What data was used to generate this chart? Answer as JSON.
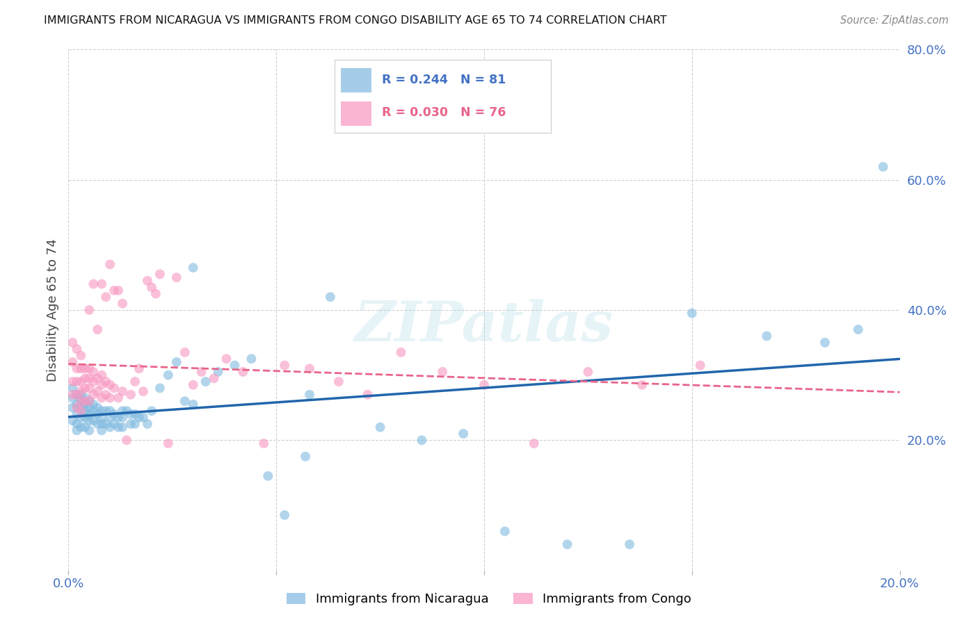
{
  "title": "IMMIGRANTS FROM NICARAGUA VS IMMIGRANTS FROM CONGO DISABILITY AGE 65 TO 74 CORRELATION CHART",
  "source": "Source: ZipAtlas.com",
  "ylabel": "Disability Age 65 to 74",
  "xlim": [
    0.0,
    0.2
  ],
  "ylim": [
    0.0,
    0.8
  ],
  "xticks": [
    0.0,
    0.05,
    0.1,
    0.15,
    0.2
  ],
  "yticks": [
    0.0,
    0.2,
    0.4,
    0.6,
    0.8
  ],
  "nicaragua_color": "#7fb9e0",
  "congo_color": "#f896c0",
  "nicaragua_line_color": "#2166ac",
  "congo_line_color": "#e8648a",
  "tick_color": "#4472c4",
  "legend_nicaragua_label": "Immigrants from Nicaragua",
  "legend_congo_label": "Immigrants from Congo",
  "R_nicaragua": 0.244,
  "N_nicaragua": 81,
  "R_congo": 0.03,
  "N_congo": 76,
  "watermark": "ZIPatlas",
  "nicaragua_x": [
    0.001,
    0.001,
    0.001,
    0.001,
    0.002,
    0.002,
    0.002,
    0.002,
    0.002,
    0.003,
    0.003,
    0.003,
    0.003,
    0.003,
    0.004,
    0.004,
    0.004,
    0.004,
    0.004,
    0.005,
    0.005,
    0.005,
    0.005,
    0.005,
    0.006,
    0.006,
    0.006,
    0.007,
    0.007,
    0.007,
    0.008,
    0.008,
    0.008,
    0.008,
    0.009,
    0.009,
    0.01,
    0.01,
    0.01,
    0.011,
    0.011,
    0.012,
    0.012,
    0.013,
    0.013,
    0.013,
    0.014,
    0.015,
    0.015,
    0.016,
    0.016,
    0.017,
    0.018,
    0.019,
    0.02,
    0.022,
    0.024,
    0.026,
    0.028,
    0.03,
    0.033,
    0.036,
    0.04,
    0.044,
    0.048,
    0.052,
    0.057,
    0.063,
    0.03,
    0.058,
    0.075,
    0.085,
    0.095,
    0.105,
    0.12,
    0.135,
    0.15,
    0.168,
    0.182,
    0.19,
    0.196
  ],
  "nicaragua_y": [
    0.28,
    0.265,
    0.25,
    0.23,
    0.27,
    0.255,
    0.24,
    0.225,
    0.215,
    0.27,
    0.26,
    0.25,
    0.235,
    0.22,
    0.265,
    0.255,
    0.245,
    0.235,
    0.22,
    0.26,
    0.25,
    0.24,
    0.23,
    0.215,
    0.255,
    0.245,
    0.23,
    0.25,
    0.24,
    0.225,
    0.245,
    0.235,
    0.225,
    0.215,
    0.245,
    0.225,
    0.245,
    0.235,
    0.22,
    0.24,
    0.225,
    0.235,
    0.22,
    0.245,
    0.235,
    0.22,
    0.245,
    0.24,
    0.225,
    0.24,
    0.225,
    0.235,
    0.235,
    0.225,
    0.245,
    0.28,
    0.3,
    0.32,
    0.26,
    0.255,
    0.29,
    0.305,
    0.315,
    0.325,
    0.145,
    0.085,
    0.175,
    0.42,
    0.465,
    0.27,
    0.22,
    0.2,
    0.21,
    0.06,
    0.04,
    0.04,
    0.395,
    0.36,
    0.35,
    0.37,
    0.62
  ],
  "congo_x": [
    0.001,
    0.001,
    0.001,
    0.001,
    0.002,
    0.002,
    0.002,
    0.002,
    0.002,
    0.003,
    0.003,
    0.003,
    0.003,
    0.003,
    0.003,
    0.004,
    0.004,
    0.004,
    0.004,
    0.005,
    0.005,
    0.005,
    0.005,
    0.006,
    0.006,
    0.006,
    0.007,
    0.007,
    0.008,
    0.008,
    0.008,
    0.009,
    0.009,
    0.01,
    0.01,
    0.011,
    0.012,
    0.013,
    0.014,
    0.015,
    0.016,
    0.017,
    0.018,
    0.019,
    0.02,
    0.021,
    0.022,
    0.024,
    0.026,
    0.028,
    0.03,
    0.032,
    0.035,
    0.038,
    0.042,
    0.047,
    0.052,
    0.058,
    0.065,
    0.072,
    0.08,
    0.09,
    0.1,
    0.112,
    0.125,
    0.138,
    0.152,
    0.005,
    0.006,
    0.007,
    0.008,
    0.009,
    0.01,
    0.011,
    0.012,
    0.013
  ],
  "congo_y": [
    0.35,
    0.32,
    0.29,
    0.27,
    0.34,
    0.31,
    0.29,
    0.27,
    0.25,
    0.33,
    0.31,
    0.29,
    0.275,
    0.26,
    0.245,
    0.31,
    0.295,
    0.28,
    0.26,
    0.31,
    0.295,
    0.28,
    0.26,
    0.305,
    0.29,
    0.27,
    0.295,
    0.275,
    0.3,
    0.285,
    0.265,
    0.29,
    0.27,
    0.285,
    0.265,
    0.28,
    0.265,
    0.275,
    0.2,
    0.27,
    0.29,
    0.31,
    0.275,
    0.445,
    0.435,
    0.425,
    0.455,
    0.195,
    0.45,
    0.335,
    0.285,
    0.305,
    0.295,
    0.325,
    0.305,
    0.195,
    0.315,
    0.31,
    0.29,
    0.27,
    0.335,
    0.305,
    0.285,
    0.195,
    0.305,
    0.285,
    0.315,
    0.4,
    0.44,
    0.37,
    0.44,
    0.42,
    0.47,
    0.43,
    0.43,
    0.41
  ]
}
